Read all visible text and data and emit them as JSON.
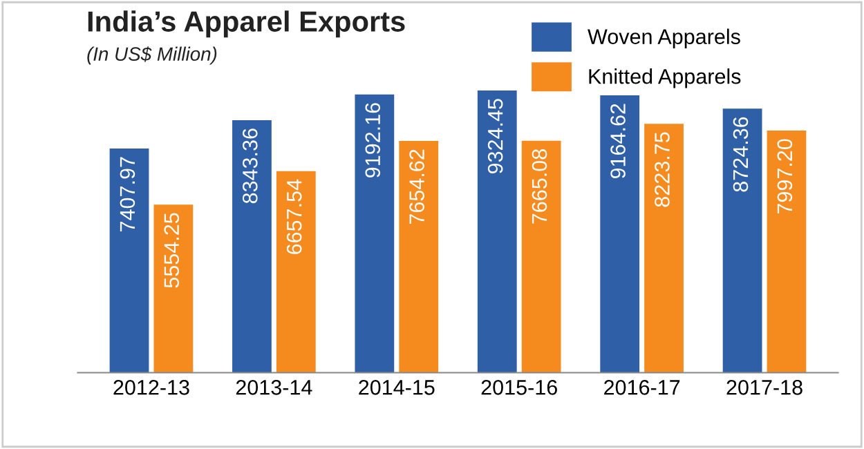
{
  "chart_data": {
    "type": "bar",
    "title": "India’s Apparel Exports",
    "subtitle": "(In US$ Million)",
    "categories": [
      "2012-13",
      "2013-14",
      "2014-15",
      "2015-16",
      "2016-17",
      "2017-18"
    ],
    "series": [
      {
        "name": "Woven Apparels",
        "color": "#2f5fa7",
        "values": [
          7407.97,
          8343.36,
          9192.16,
          9324.45,
          9164.62,
          8724.36
        ],
        "value_labels": [
          "7407.97",
          "8343.36",
          "9192.16",
          "9324.45",
          "9164.62",
          "8724.36"
        ]
      },
      {
        "name": "Knitted Apparels",
        "color": "#f58a1f",
        "values": [
          5554.25,
          6657.54,
          7654.62,
          7665.08,
          8223.75,
          7997.2
        ],
        "value_labels": [
          "5554.25",
          "6657.54",
          "7654.62",
          "7665.08",
          "8223.75",
          "7997.20"
        ]
      }
    ],
    "legend": "top right",
    "tick_labels": "x",
    "grid": false
  }
}
